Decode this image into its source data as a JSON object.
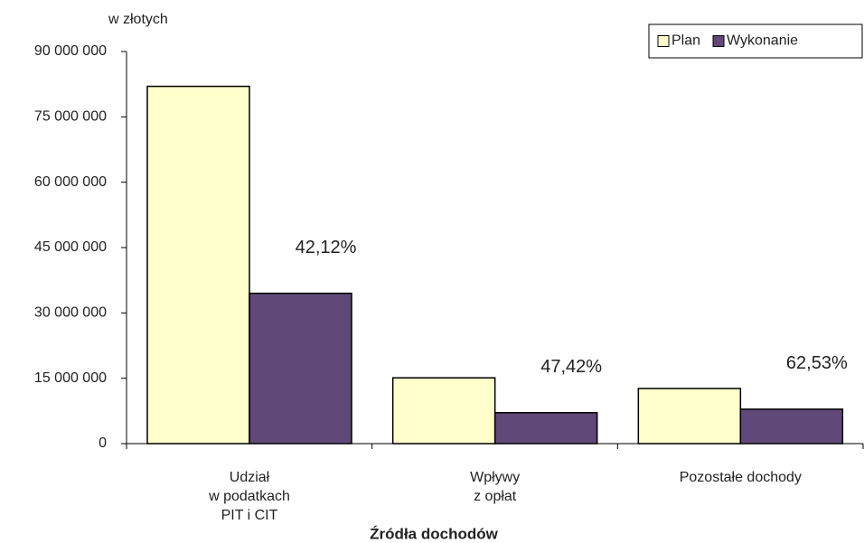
{
  "chart_data": {
    "type": "bar",
    "y_unit_label": "w złotych",
    "xlabel": "Źródła dochodów",
    "categories": [
      "Udział\nw podatkach\nPIT i CIT",
      "Wpływy\nz opłat",
      "Pozostałe dochody"
    ],
    "series": [
      {
        "name": "Plan",
        "color": "#ffffcc",
        "values": [
          82000000,
          15100000,
          12650000
        ]
      },
      {
        "name": "Wykonanie",
        "color": "#604878",
        "values": [
          34500000,
          7100000,
          7900000
        ]
      }
    ],
    "annotations": [
      "42,12%",
      "47,42%",
      "62,53%"
    ],
    "ylim": [
      0,
      90000000
    ],
    "yticks": [
      0,
      {
        "value": 15000000,
        "label": "15 000 000"
      },
      {
        "value": 30000000,
        "label": "30 000 000"
      },
      {
        "value": 45000000,
        "label": "45 000 000"
      },
      {
        "value": 60000000,
        "label": "60 000 000"
      },
      {
        "value": 75000000,
        "label": "75 000 000"
      },
      {
        "value": 90000000,
        "label": "90 000 000"
      }
    ],
    "legend": "top-right",
    "grid": false
  }
}
